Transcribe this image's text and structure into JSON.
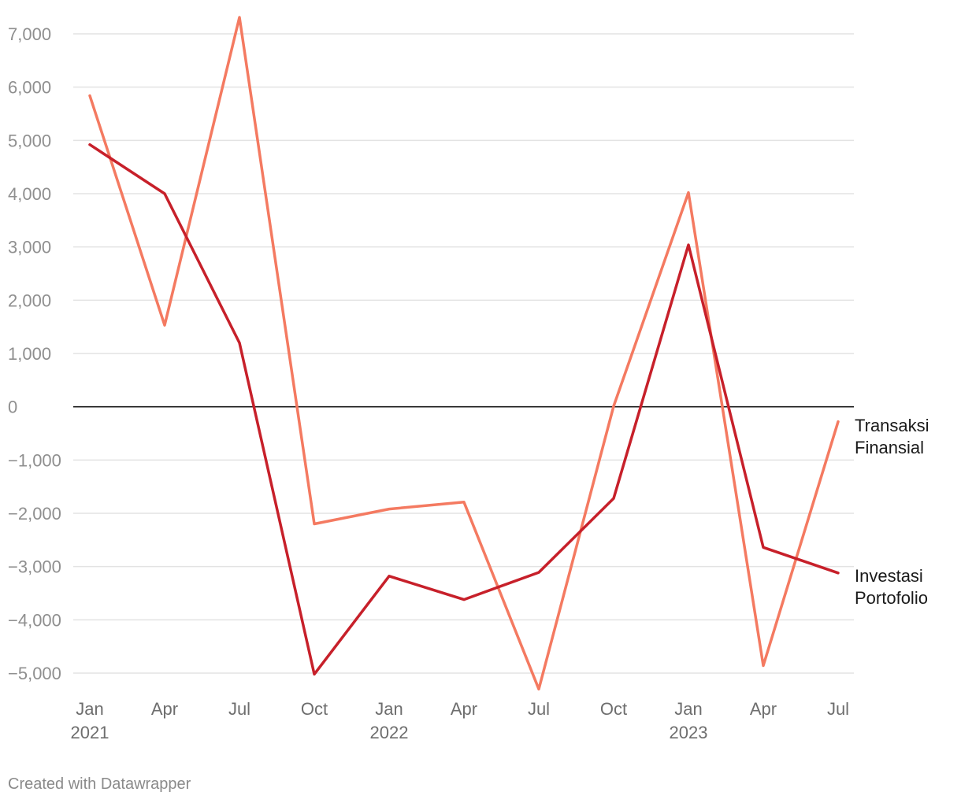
{
  "chart_data": {
    "type": "line",
    "title": "",
    "xlabel": "",
    "ylabel": "",
    "x": [
      "2021-01",
      "2021-04",
      "2021-07",
      "2021-10",
      "2022-01",
      "2022-04",
      "2022-07",
      "2022-10",
      "2023-01",
      "2023-04",
      "2023-07"
    ],
    "x_tick_labels": [
      {
        "month": "Jan",
        "year": "2021"
      },
      {
        "month": "Apr",
        "year": ""
      },
      {
        "month": "Jul",
        "year": ""
      },
      {
        "month": "Oct",
        "year": ""
      },
      {
        "month": "Jan",
        "year": "2022"
      },
      {
        "month": "Apr",
        "year": ""
      },
      {
        "month": "Jul",
        "year": ""
      },
      {
        "month": "Oct",
        "year": ""
      },
      {
        "month": "Jan",
        "year": "2023"
      },
      {
        "month": "Apr",
        "year": ""
      },
      {
        "month": "Jul",
        "year": ""
      }
    ],
    "y_ticks": [
      7000,
      6000,
      5000,
      4000,
      3000,
      2000,
      1000,
      0,
      -1000,
      -2000,
      -3000,
      -4000,
      -5000
    ],
    "y_tick_labels": [
      "7,000",
      "6,000",
      "5,000",
      "4,000",
      "3,000",
      "2,000",
      "1,000",
      "0",
      "−1,000",
      "−2,000",
      "−3,000",
      "−4,000",
      "−5,000"
    ],
    "ylim": [
      -5000,
      7000
    ],
    "grid": true,
    "legend": "direct labels at right end of lines",
    "series": [
      {
        "name": "Transaksi Finansial",
        "label_lines": [
          "Transaksi",
          "Finansial"
        ],
        "color": "#f47a61",
        "values": [
          5840,
          1530,
          7310,
          -2200,
          -1920,
          -1790,
          -5300,
          10,
          4020,
          -4860,
          -280
        ]
      },
      {
        "name": "Investasi Portofolio",
        "label_lines": [
          "Investasi",
          "Portofolio"
        ],
        "color": "#c7202a",
        "values": [
          4920,
          4000,
          1200,
          -5020,
          -3180,
          -3620,
          -3110,
          -1720,
          3040,
          -2640,
          -3120
        ]
      }
    ]
  },
  "footer": {
    "credit": "Created with Datawrapper"
  }
}
